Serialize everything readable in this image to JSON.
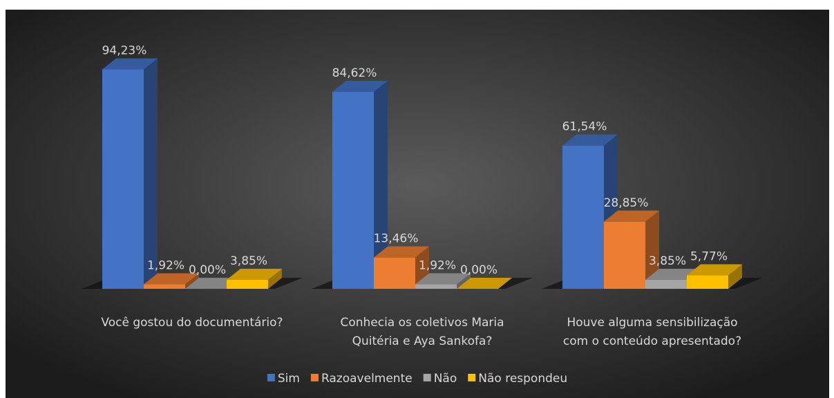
{
  "chart_data": {
    "type": "bar3d",
    "categories": [
      "Você gostou do documentário?",
      "Conhecia os coletivos Maria Quitéria e Aya Sankofa?",
      "Houve alguma sensibilização com o conteúdo apresentado?"
    ],
    "series": [
      {
        "name": "Sim",
        "color": "#4472c4",
        "values": [
          94.23,
          84.62,
          61.54
        ],
        "value_labels": [
          "94,23%",
          "84,62%",
          "61,54%"
        ]
      },
      {
        "name": "Razoavelmente",
        "color": "#ed7d31",
        "values": [
          1.92,
          13.46,
          28.85
        ],
        "value_labels": [
          "1,92%",
          "13,46%",
          "28,85%"
        ]
      },
      {
        "name": "Não",
        "color": "#a5a5a5",
        "values": [
          0,
          1.92,
          3.85
        ],
        "value_labels": [
          "0,00%",
          "1,92%",
          "3,85%"
        ]
      },
      {
        "name": "Não respondeu",
        "color": "#ffc000",
        "values": [
          3.85,
          0,
          5.77
        ],
        "value_labels": [
          "3,85%",
          "0,00%",
          "5,77%"
        ]
      }
    ],
    "legend": "bottom"
  }
}
